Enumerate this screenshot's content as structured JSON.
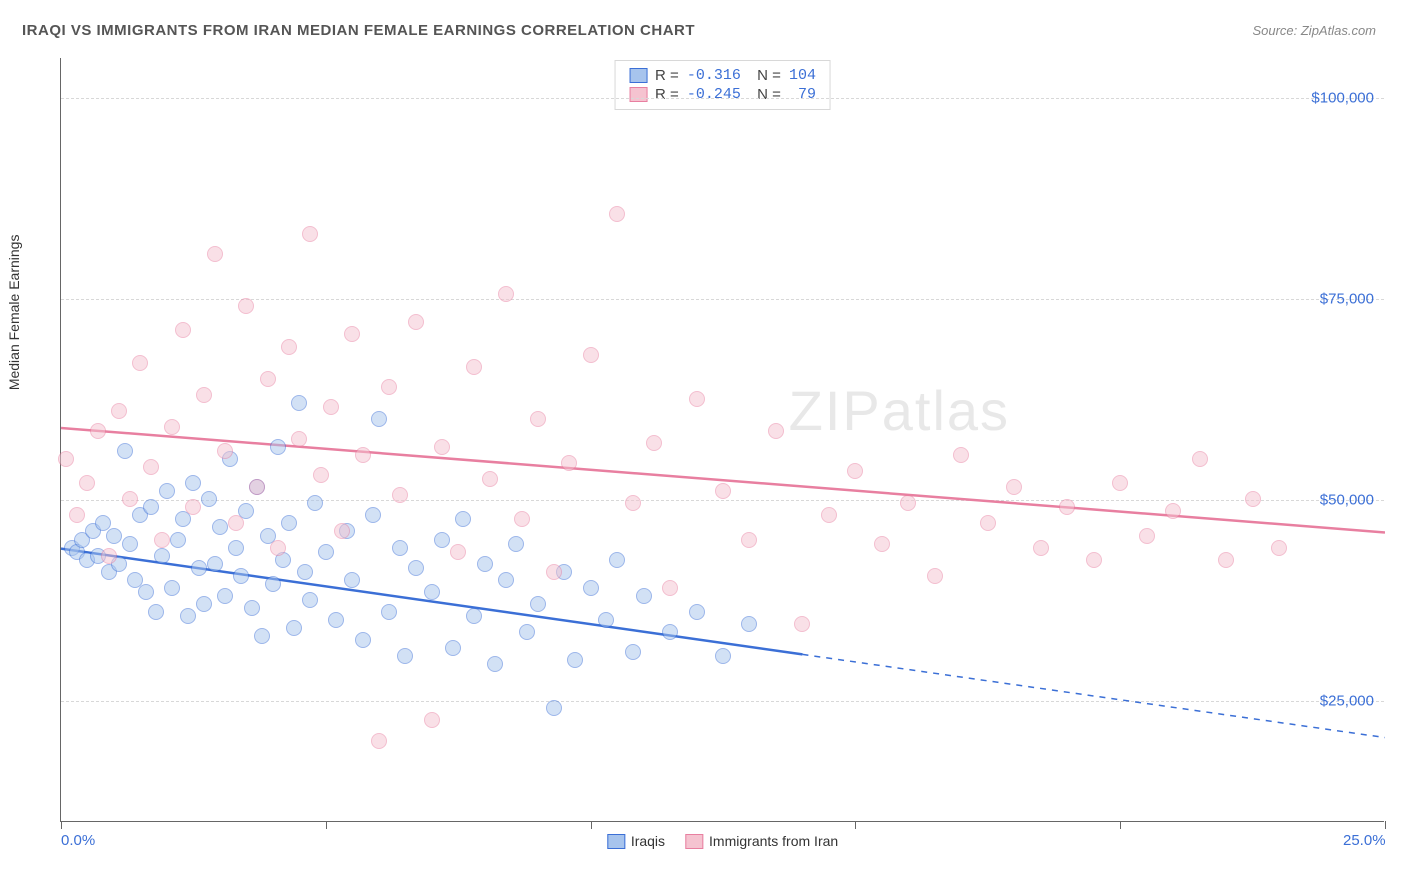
{
  "header": {
    "title": "IRAQI VS IMMIGRANTS FROM IRAN MEDIAN FEMALE EARNINGS CORRELATION CHART",
    "source": "Source: ZipAtlas.com"
  },
  "chart": {
    "type": "scatter",
    "ylabel": "Median Female Earnings",
    "watermark": "ZIPatlas",
    "background_color": "#ffffff",
    "grid_color": "#d8d8d8",
    "axis_color": "#666666",
    "text_color": "#333333",
    "value_color": "#3b6fd6",
    "xlim": [
      0,
      25
    ],
    "ylim": [
      10000,
      105000
    ],
    "ytick_step": 25000,
    "yticks": [
      {
        "v": 25000,
        "label": "$25,000"
      },
      {
        "v": 50000,
        "label": "$50,000"
      },
      {
        "v": 75000,
        "label": "$75,000"
      },
      {
        "v": 100000,
        "label": "$100,000"
      }
    ],
    "xticks": [
      0,
      5,
      10,
      15,
      20,
      25
    ],
    "xaxis_labels": [
      {
        "v": 0,
        "label": "0.0%"
      },
      {
        "v": 25,
        "label": "25.0%"
      }
    ],
    "point_radius": 8,
    "point_opacity": 0.5,
    "series": [
      {
        "name": "Iraqis",
        "fill_color": "#a7c4ed",
        "stroke_color": "#3b6fd6",
        "R": "-0.316",
        "N": "104",
        "regression": {
          "x1": 0,
          "y1": 44000,
          "x2": 25,
          "y2": 20500,
          "solid_until_x": 14
        },
        "points": [
          [
            0.2,
            44000
          ],
          [
            0.3,
            43500
          ],
          [
            0.4,
            45000
          ],
          [
            0.5,
            42500
          ],
          [
            0.6,
            46000
          ],
          [
            0.7,
            43000
          ],
          [
            0.8,
            47000
          ],
          [
            0.9,
            41000
          ],
          [
            1.0,
            45500
          ],
          [
            1.1,
            42000
          ],
          [
            1.2,
            56000
          ],
          [
            1.3,
            44500
          ],
          [
            1.4,
            40000
          ],
          [
            1.5,
            48000
          ],
          [
            1.6,
            38500
          ],
          [
            1.7,
            49000
          ],
          [
            1.8,
            36000
          ],
          [
            1.9,
            43000
          ],
          [
            2.0,
            51000
          ],
          [
            2.1,
            39000
          ],
          [
            2.2,
            45000
          ],
          [
            2.3,
            47500
          ],
          [
            2.4,
            35500
          ],
          [
            2.5,
            52000
          ],
          [
            2.6,
            41500
          ],
          [
            2.7,
            37000
          ],
          [
            2.8,
            50000
          ],
          [
            2.9,
            42000
          ],
          [
            3.0,
            46500
          ],
          [
            3.1,
            38000
          ],
          [
            3.2,
            55000
          ],
          [
            3.3,
            44000
          ],
          [
            3.4,
            40500
          ],
          [
            3.5,
            48500
          ],
          [
            3.6,
            36500
          ],
          [
            3.7,
            51500
          ],
          [
            3.8,
            33000
          ],
          [
            3.9,
            45500
          ],
          [
            4.0,
            39500
          ],
          [
            4.1,
            56500
          ],
          [
            4.2,
            42500
          ],
          [
            4.3,
            47000
          ],
          [
            4.4,
            34000
          ],
          [
            4.5,
            62000
          ],
          [
            4.6,
            41000
          ],
          [
            4.7,
            37500
          ],
          [
            4.8,
            49500
          ],
          [
            5.0,
            43500
          ],
          [
            5.2,
            35000
          ],
          [
            5.4,
            46000
          ],
          [
            5.5,
            40000
          ],
          [
            5.7,
            32500
          ],
          [
            5.9,
            48000
          ],
          [
            6.0,
            60000
          ],
          [
            6.2,
            36000
          ],
          [
            6.4,
            44000
          ],
          [
            6.5,
            30500
          ],
          [
            6.7,
            41500
          ],
          [
            7.0,
            38500
          ],
          [
            7.2,
            45000
          ],
          [
            7.4,
            31500
          ],
          [
            7.6,
            47500
          ],
          [
            7.8,
            35500
          ],
          [
            8.0,
            42000
          ],
          [
            8.2,
            29500
          ],
          [
            8.4,
            40000
          ],
          [
            8.6,
            44500
          ],
          [
            8.8,
            33500
          ],
          [
            9.0,
            37000
          ],
          [
            9.3,
            24000
          ],
          [
            9.5,
            41000
          ],
          [
            9.7,
            30000
          ],
          [
            10.0,
            39000
          ],
          [
            10.3,
            35000
          ],
          [
            10.5,
            42500
          ],
          [
            10.8,
            31000
          ],
          [
            11.0,
            38000
          ],
          [
            11.5,
            33500
          ],
          [
            12.0,
            36000
          ],
          [
            12.5,
            30500
          ],
          [
            13.0,
            34500
          ]
        ]
      },
      {
        "name": "Immigrants from Iran",
        "fill_color": "#f5c3d0",
        "stroke_color": "#e87fa0",
        "R": "-0.245",
        "N": "79",
        "regression": {
          "x1": 0,
          "y1": 59000,
          "x2": 25,
          "y2": 46000,
          "solid_until_x": 25
        },
        "points": [
          [
            0.1,
            55000
          ],
          [
            0.3,
            48000
          ],
          [
            0.5,
            52000
          ],
          [
            0.7,
            58500
          ],
          [
            0.9,
            43000
          ],
          [
            1.1,
            61000
          ],
          [
            1.3,
            50000
          ],
          [
            1.5,
            67000
          ],
          [
            1.7,
            54000
          ],
          [
            1.9,
            45000
          ],
          [
            2.1,
            59000
          ],
          [
            2.3,
            71000
          ],
          [
            2.5,
            49000
          ],
          [
            2.7,
            63000
          ],
          [
            2.9,
            80500
          ],
          [
            3.1,
            56000
          ],
          [
            3.3,
            47000
          ],
          [
            3.5,
            74000
          ],
          [
            3.7,
            51500
          ],
          [
            3.9,
            65000
          ],
          [
            4.1,
            44000
          ],
          [
            4.3,
            69000
          ],
          [
            4.5,
            57500
          ],
          [
            4.7,
            83000
          ],
          [
            4.9,
            53000
          ],
          [
            5.1,
            61500
          ],
          [
            5.3,
            46000
          ],
          [
            5.5,
            70500
          ],
          [
            5.7,
            55500
          ],
          [
            6.0,
            20000
          ],
          [
            6.2,
            64000
          ],
          [
            6.4,
            50500
          ],
          [
            6.7,
            72000
          ],
          [
            7.0,
            22500
          ],
          [
            7.2,
            56500
          ],
          [
            7.5,
            43500
          ],
          [
            7.8,
            66500
          ],
          [
            8.1,
            52500
          ],
          [
            8.4,
            75500
          ],
          [
            8.7,
            47500
          ],
          [
            9.0,
            60000
          ],
          [
            9.3,
            41000
          ],
          [
            9.6,
            54500
          ],
          [
            10.0,
            68000
          ],
          [
            10.5,
            85500
          ],
          [
            10.8,
            49500
          ],
          [
            11.2,
            57000
          ],
          [
            11.5,
            39000
          ],
          [
            12.0,
            62500
          ],
          [
            12.5,
            51000
          ],
          [
            13.0,
            45000
          ],
          [
            13.5,
            58500
          ],
          [
            14.0,
            34500
          ],
          [
            14.5,
            48000
          ],
          [
            15.0,
            53500
          ],
          [
            15.5,
            44500
          ],
          [
            16.0,
            49500
          ],
          [
            16.5,
            40500
          ],
          [
            17.0,
            55500
          ],
          [
            17.5,
            47000
          ],
          [
            18.0,
            51500
          ],
          [
            18.5,
            44000
          ],
          [
            19.0,
            49000
          ],
          [
            19.5,
            42500
          ],
          [
            20.0,
            52000
          ],
          [
            20.5,
            45500
          ],
          [
            21.0,
            48500
          ],
          [
            21.5,
            55000
          ],
          [
            22.0,
            42500
          ],
          [
            22.5,
            50000
          ],
          [
            23.0,
            44000
          ]
        ]
      }
    ],
    "legend_bottom": [
      "Iraqis",
      "Immigrants from Iran"
    ]
  }
}
